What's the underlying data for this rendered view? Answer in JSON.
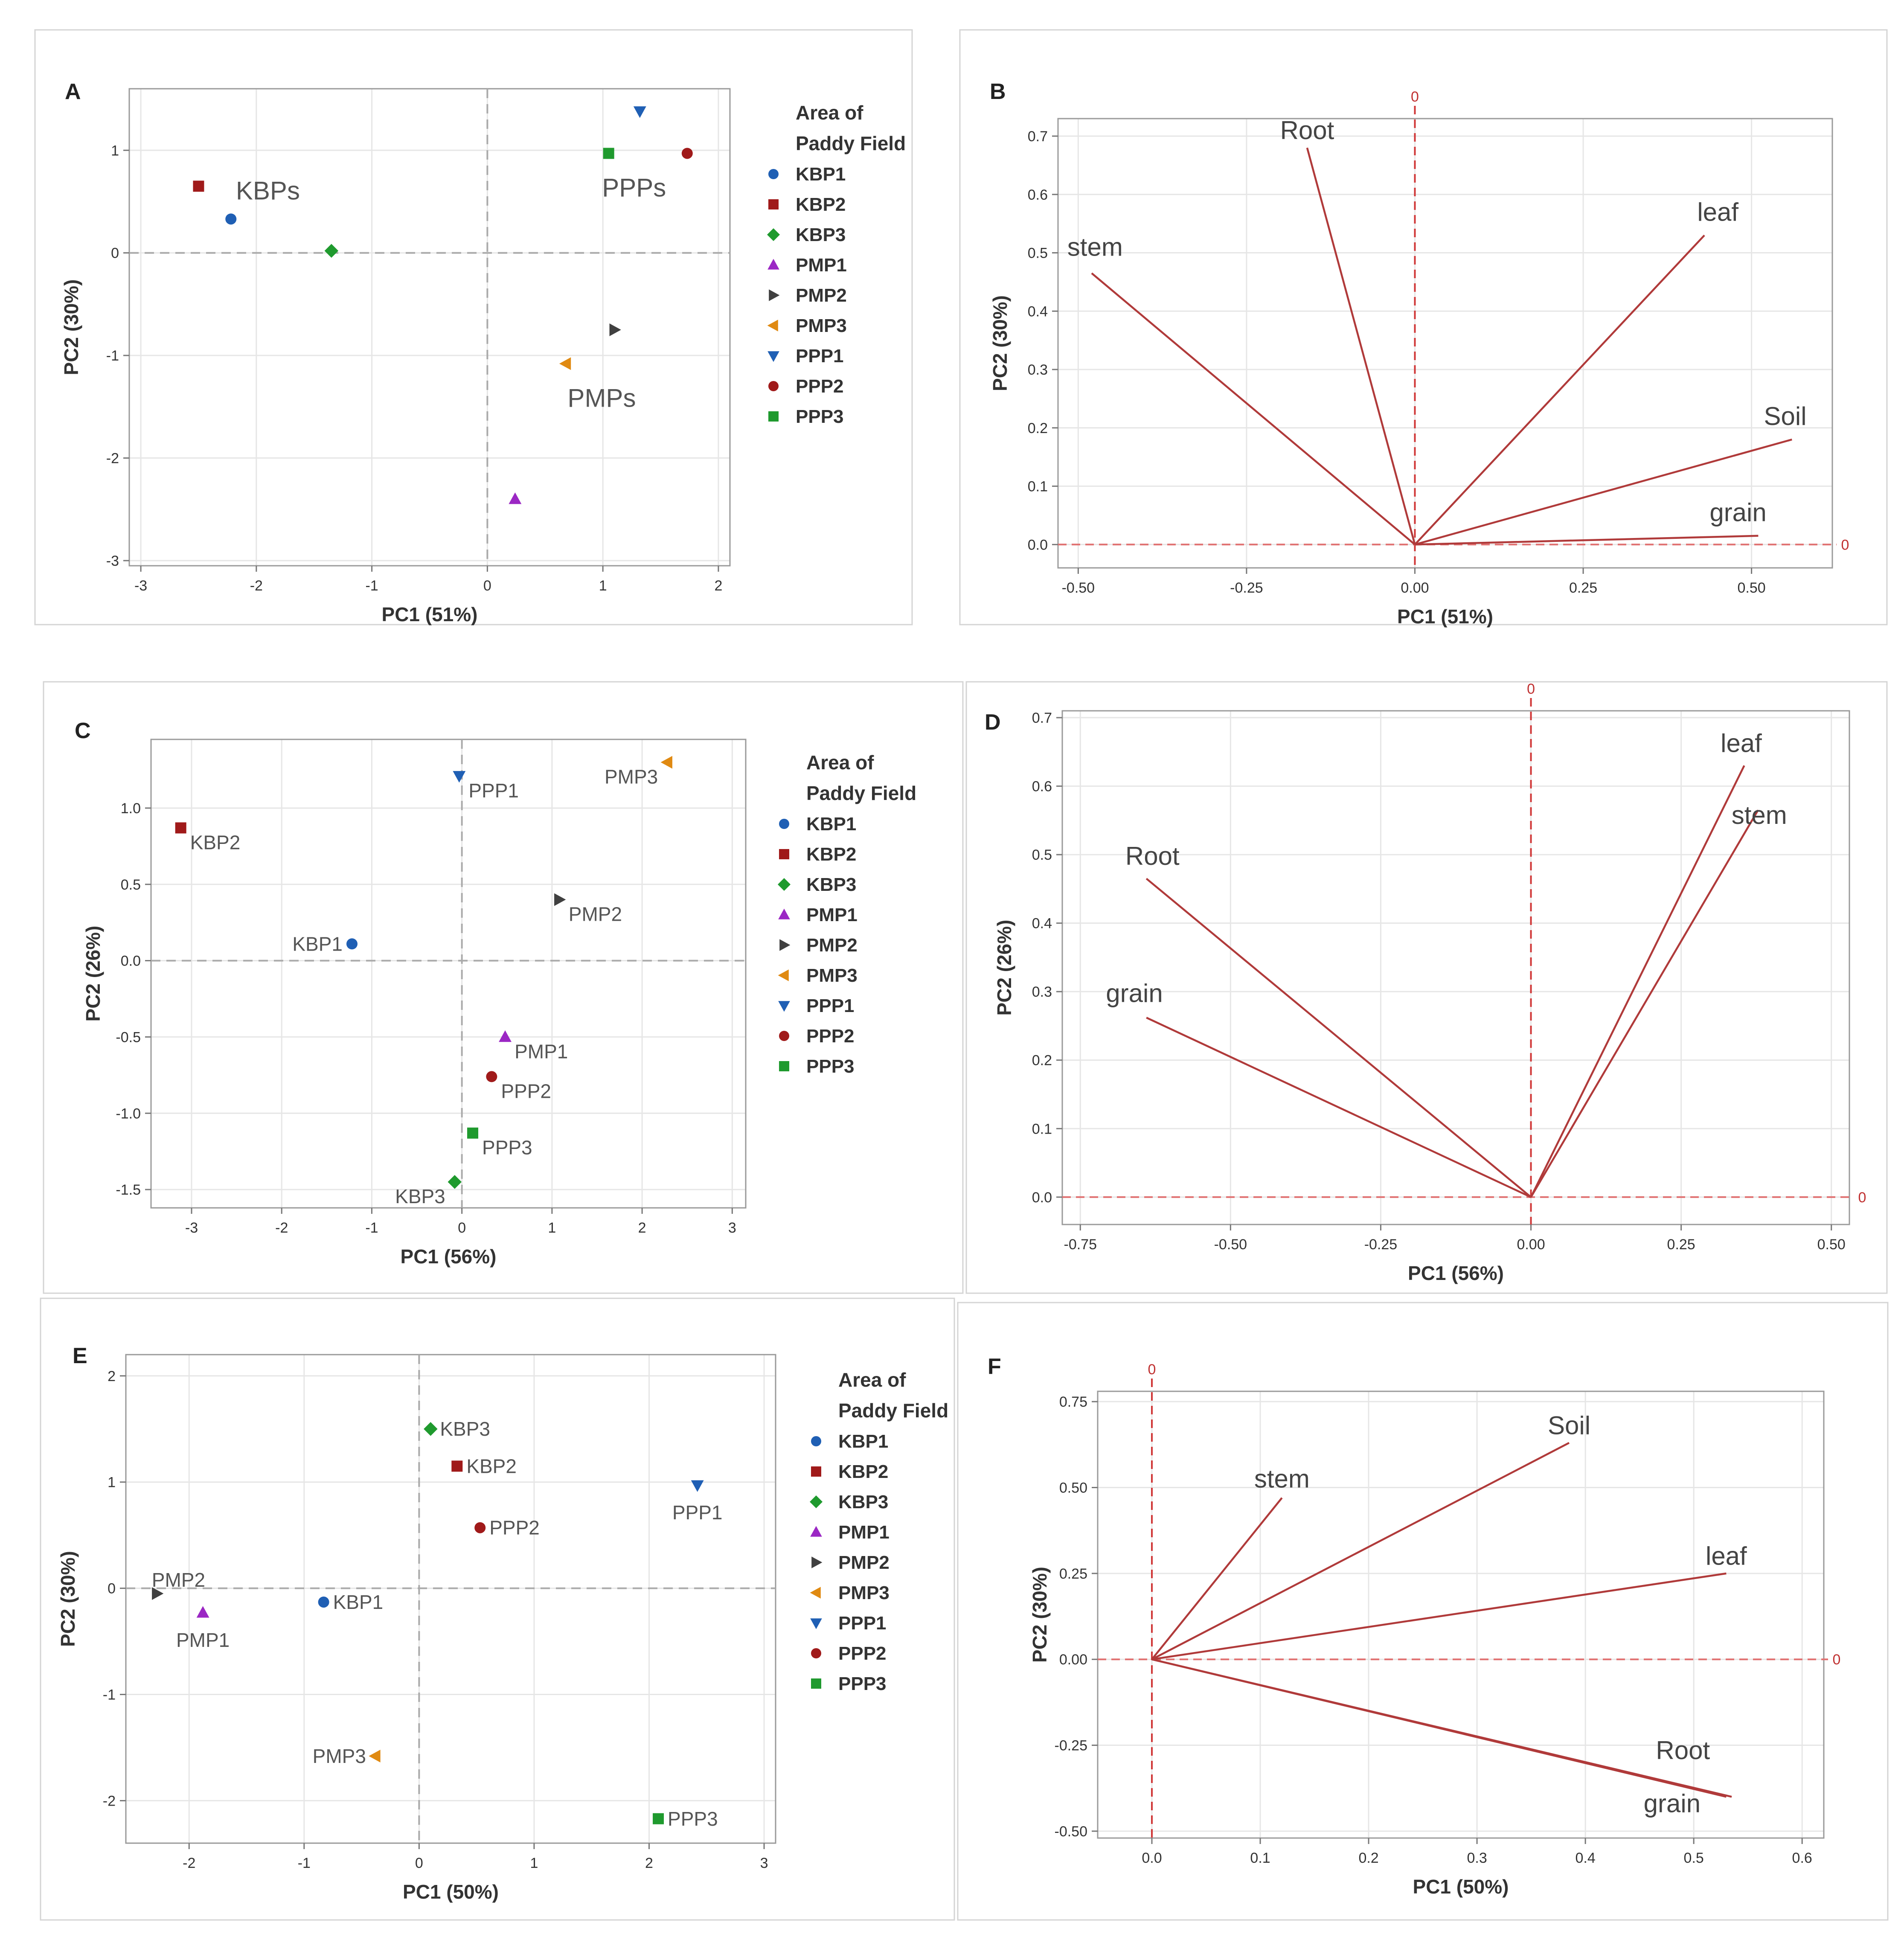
{
  "legend_common": {
    "title_line1": "Area of",
    "title_line2": "Paddy Field",
    "entries": [
      {
        "name": "KBP1",
        "color": "#1f5fb4",
        "marker": "circle"
      },
      {
        "name": "KBP2",
        "color": "#a01a1a",
        "marker": "square"
      },
      {
        "name": "KBP3",
        "color": "#1f9a2e",
        "marker": "diamond"
      },
      {
        "name": "PMP1",
        "color": "#9b27c4",
        "marker": "triangle-up"
      },
      {
        "name": "PMP2",
        "color": "#404040",
        "marker": "triangle-right"
      },
      {
        "name": "PMP3",
        "color": "#e08a12",
        "marker": "triangle-left"
      },
      {
        "name": "PPP1",
        "color": "#1f5fb4",
        "marker": "triangle-down"
      },
      {
        "name": "PPP2",
        "color": "#a01a1a",
        "marker": "circle"
      },
      {
        "name": "PPP3",
        "color": "#1f9a2e",
        "marker": "square"
      }
    ]
  },
  "chart_data": [
    {
      "panel": "A",
      "type": "scatter",
      "xlabel": "PC1 (51%)",
      "ylabel": "PC2 (30%)",
      "xlim": [
        -3.1,
        2.1
      ],
      "ylim": [
        -3.05,
        1.6
      ],
      "xticks": [
        -3,
        -2,
        -1,
        0,
        1,
        2
      ],
      "yticks": [
        -3,
        -2,
        -1,
        0,
        1
      ],
      "xtick_labels": [
        "-3",
        "-2",
        "-1",
        "0",
        "1",
        "2"
      ],
      "ytick_labels": [
        "-3",
        "-2",
        "-1",
        "0",
        "1"
      ],
      "points": [
        {
          "name": "KBP1",
          "x": -2.22,
          "y": 0.33
        },
        {
          "name": "KBP2",
          "x": -2.5,
          "y": 0.65
        },
        {
          "name": "KBP3",
          "x": -1.35,
          "y": 0.02
        },
        {
          "name": "PMP1",
          "x": 0.24,
          "y": -2.4
        },
        {
          "name": "PMP2",
          "x": 1.1,
          "y": -0.75
        },
        {
          "name": "PMP3",
          "x": 0.68,
          "y": -1.08
        },
        {
          "name": "PPP1",
          "x": 1.32,
          "y": 1.38
        },
        {
          "name": "PPP2",
          "x": 1.73,
          "y": 0.97
        },
        {
          "name": "PPP3",
          "x": 1.05,
          "y": 0.97
        }
      ],
      "group_labels": [
        {
          "text": "KBPs",
          "x": -1.9,
          "y": 0.52
        },
        {
          "text": "PPPs",
          "x": 1.27,
          "y": 0.55
        },
        {
          "text": "PMPs",
          "x": 0.99,
          "y": -1.5
        }
      ]
    },
    {
      "panel": "B",
      "type": "loading",
      "xlabel": "PC1 (51%)",
      "ylabel": "PC2 (30%)",
      "xlim": [
        -0.53,
        0.62
      ],
      "ylim": [
        -0.04,
        0.73
      ],
      "xticks": [
        -0.5,
        -0.25,
        0,
        0.25,
        0.5
      ],
      "yticks": [
        0,
        0.1,
        0.2,
        0.3,
        0.4,
        0.5,
        0.6,
        0.7
      ],
      "xtick_labels": [
        "-0.50",
        "-0.25",
        "0.00",
        "0.25",
        "0.50"
      ],
      "ytick_labels": [
        "0.0",
        "0.1",
        "0.2",
        "0.3",
        "0.4",
        "0.5",
        "0.6",
        "0.7"
      ],
      "zero_label": "0",
      "vectors": [
        {
          "name": "Root",
          "x": -0.16,
          "y": 0.68,
          "lx": -0.16,
          "ly": 0.695
        },
        {
          "name": "stem",
          "x": -0.48,
          "y": 0.465,
          "lx": -0.475,
          "ly": 0.495
        },
        {
          "name": "leaf",
          "x": 0.43,
          "y": 0.53,
          "lx": 0.45,
          "ly": 0.555
        },
        {
          "name": "Soil",
          "x": 0.56,
          "y": 0.18,
          "lx": 0.55,
          "ly": 0.205
        },
        {
          "name": "grain",
          "x": 0.51,
          "y": 0.015,
          "lx": 0.48,
          "ly": 0.04
        }
      ]
    },
    {
      "panel": "C",
      "type": "scatter",
      "xlabel": "PC1 (56%)",
      "ylabel": "PC2 (26%)",
      "xlim": [
        -3.45,
        3.15
      ],
      "ylim": [
        -1.62,
        1.45
      ],
      "xticks": [
        -3,
        -2,
        -1,
        0,
        1,
        2,
        3
      ],
      "yticks": [
        -1.5,
        -1.0,
        -0.5,
        0.0,
        0.5,
        1.0
      ],
      "xtick_labels": [
        "-3",
        "-2",
        "-1",
        "0",
        "1",
        "2",
        "3"
      ],
      "ytick_labels": [
        "-1.5",
        "-1.0",
        "-0.5",
        "0.0",
        "0.5",
        "1.0"
      ],
      "points": [
        {
          "name": "KBP1",
          "label": "KBP1",
          "x": -1.22,
          "y": 0.11,
          "lpos": "left"
        },
        {
          "name": "KBP2",
          "label": "KBP2",
          "x": -3.12,
          "y": 0.87,
          "lpos": "right-below"
        },
        {
          "name": "KBP3",
          "label": "KBP3",
          "x": -0.08,
          "y": -1.45,
          "lpos": "left-below"
        },
        {
          "name": "PMP1",
          "label": "PMP1",
          "x": 0.48,
          "y": -0.5,
          "lpos": "right-below"
        },
        {
          "name": "PMP2",
          "label": "PMP2",
          "x": 1.08,
          "y": 0.4,
          "lpos": "right-below"
        },
        {
          "name": "PMP3",
          "label": "PMP3",
          "x": 2.28,
          "y": 1.3,
          "lpos": "left-below"
        },
        {
          "name": "PPP1",
          "label": "PPP1",
          "x": -0.03,
          "y": 1.21,
          "lpos": "right-below"
        },
        {
          "name": "PPP2",
          "label": "PPP2",
          "x": 0.33,
          "y": -0.76,
          "lpos": "right-below"
        },
        {
          "name": "PPP3",
          "label": "PPP3",
          "x": 0.12,
          "y": -1.13,
          "lpos": "right-below"
        }
      ]
    },
    {
      "panel": "D",
      "type": "loading",
      "xlabel": "PC1 (56%)",
      "ylabel": "PC2 (26%)",
      "xlim": [
        -0.78,
        0.53
      ],
      "ylim": [
        -0.04,
        0.71
      ],
      "xticks": [
        -0.75,
        -0.5,
        -0.25,
        0,
        0.25,
        0.5
      ],
      "yticks": [
        0,
        0.1,
        0.2,
        0.3,
        0.4,
        0.5,
        0.6,
        0.7
      ],
      "xtick_labels": [
        "-0.75",
        "-0.50",
        "-0.25",
        "0.00",
        "0.25",
        "0.50"
      ],
      "ytick_labels": [
        "0.0",
        "0.1",
        "0.2",
        "0.3",
        "0.4",
        "0.5",
        "0.6",
        "0.7"
      ],
      "zero_label": "0",
      "vectors": [
        {
          "name": "leaf",
          "x": 0.355,
          "y": 0.63,
          "lx": 0.35,
          "ly": 0.65
        },
        {
          "name": "stem",
          "x": 0.378,
          "y": 0.565,
          "lx": 0.38,
          "ly": 0.545
        },
        {
          "name": "Root",
          "x": -0.64,
          "y": 0.465,
          "lx": -0.63,
          "ly": 0.485
        },
        {
          "name": "grain",
          "x": -0.64,
          "y": 0.262,
          "lx": -0.66,
          "ly": 0.285
        }
      ]
    },
    {
      "panel": "E",
      "type": "scatter",
      "xlabel": "PC1 (50%)",
      "ylabel": "PC2 (30%)",
      "xlim": [
        -2.55,
        3.1
      ],
      "ylim": [
        -2.4,
        2.2
      ],
      "xticks": [
        -2,
        -1,
        0,
        1,
        2,
        3
      ],
      "yticks": [
        -2,
        -1,
        0,
        1,
        2
      ],
      "xtick_labels": [
        "-2",
        "-1",
        "0",
        "1",
        "2",
        "3"
      ],
      "ytick_labels": [
        "-2",
        "-1",
        "0",
        "1",
        "2"
      ],
      "points": [
        {
          "name": "KBP1",
          "label": "KBP1",
          "x": -0.83,
          "y": -0.13,
          "lpos": "right"
        },
        {
          "name": "KBP2",
          "label": "KBP2",
          "x": 0.33,
          "y": 1.15,
          "lpos": "right"
        },
        {
          "name": "KBP3",
          "label": "KBP3",
          "x": 0.1,
          "y": 1.5,
          "lpos": "right"
        },
        {
          "name": "PMP1",
          "label": "PMP1",
          "x": -1.88,
          "y": -0.23,
          "lpos": "below"
        },
        {
          "name": "PMP2",
          "label": "PMP2",
          "x": -2.28,
          "y": -0.05,
          "lpos": "right-above"
        },
        {
          "name": "PMP3",
          "label": "PMP3",
          "x": -0.38,
          "y": -1.58,
          "lpos": "left"
        },
        {
          "name": "PPP1",
          "label": "PPP1",
          "x": 2.42,
          "y": 0.97,
          "lpos": "below"
        },
        {
          "name": "PPP2",
          "label": "PPP2",
          "x": 0.53,
          "y": 0.57,
          "lpos": "right"
        },
        {
          "name": "PPP3",
          "label": "PPP3",
          "x": 2.08,
          "y": -2.17,
          "lpos": "right"
        }
      ]
    },
    {
      "panel": "F",
      "type": "loading",
      "xlabel": "PC1 (50%)",
      "ylabel": "PC2 (30%)",
      "xlim": [
        -0.05,
        0.62
      ],
      "ylim": [
        -0.52,
        0.78
      ],
      "xticks": [
        0,
        0.1,
        0.2,
        0.3,
        0.4,
        0.5,
        0.6
      ],
      "yticks": [
        -0.5,
        -0.25,
        0,
        0.25,
        0.5,
        0.75
      ],
      "xtick_labels": [
        "0.0",
        "0.1",
        "0.2",
        "0.3",
        "0.4",
        "0.5",
        "0.6"
      ],
      "ytick_labels": [
        "-0.50",
        "-0.25",
        "0.00",
        "0.25",
        "0.50",
        "0.75"
      ],
      "zero_label": "0",
      "vectors": [
        {
          "name": "Soil",
          "x": 0.385,
          "y": 0.63,
          "lx": 0.385,
          "ly": 0.655
        },
        {
          "name": "stem",
          "x": 0.12,
          "y": 0.47,
          "lx": 0.12,
          "ly": 0.5
        },
        {
          "name": "leaf",
          "x": 0.53,
          "y": 0.25,
          "lx": 0.53,
          "ly": 0.275
        },
        {
          "name": "Root",
          "x": 0.535,
          "y": -0.4,
          "lx": 0.49,
          "ly": -0.29
        },
        {
          "name": "grain",
          "x": 0.53,
          "y": -0.4,
          "lx": 0.48,
          "ly": -0.445
        }
      ]
    }
  ]
}
